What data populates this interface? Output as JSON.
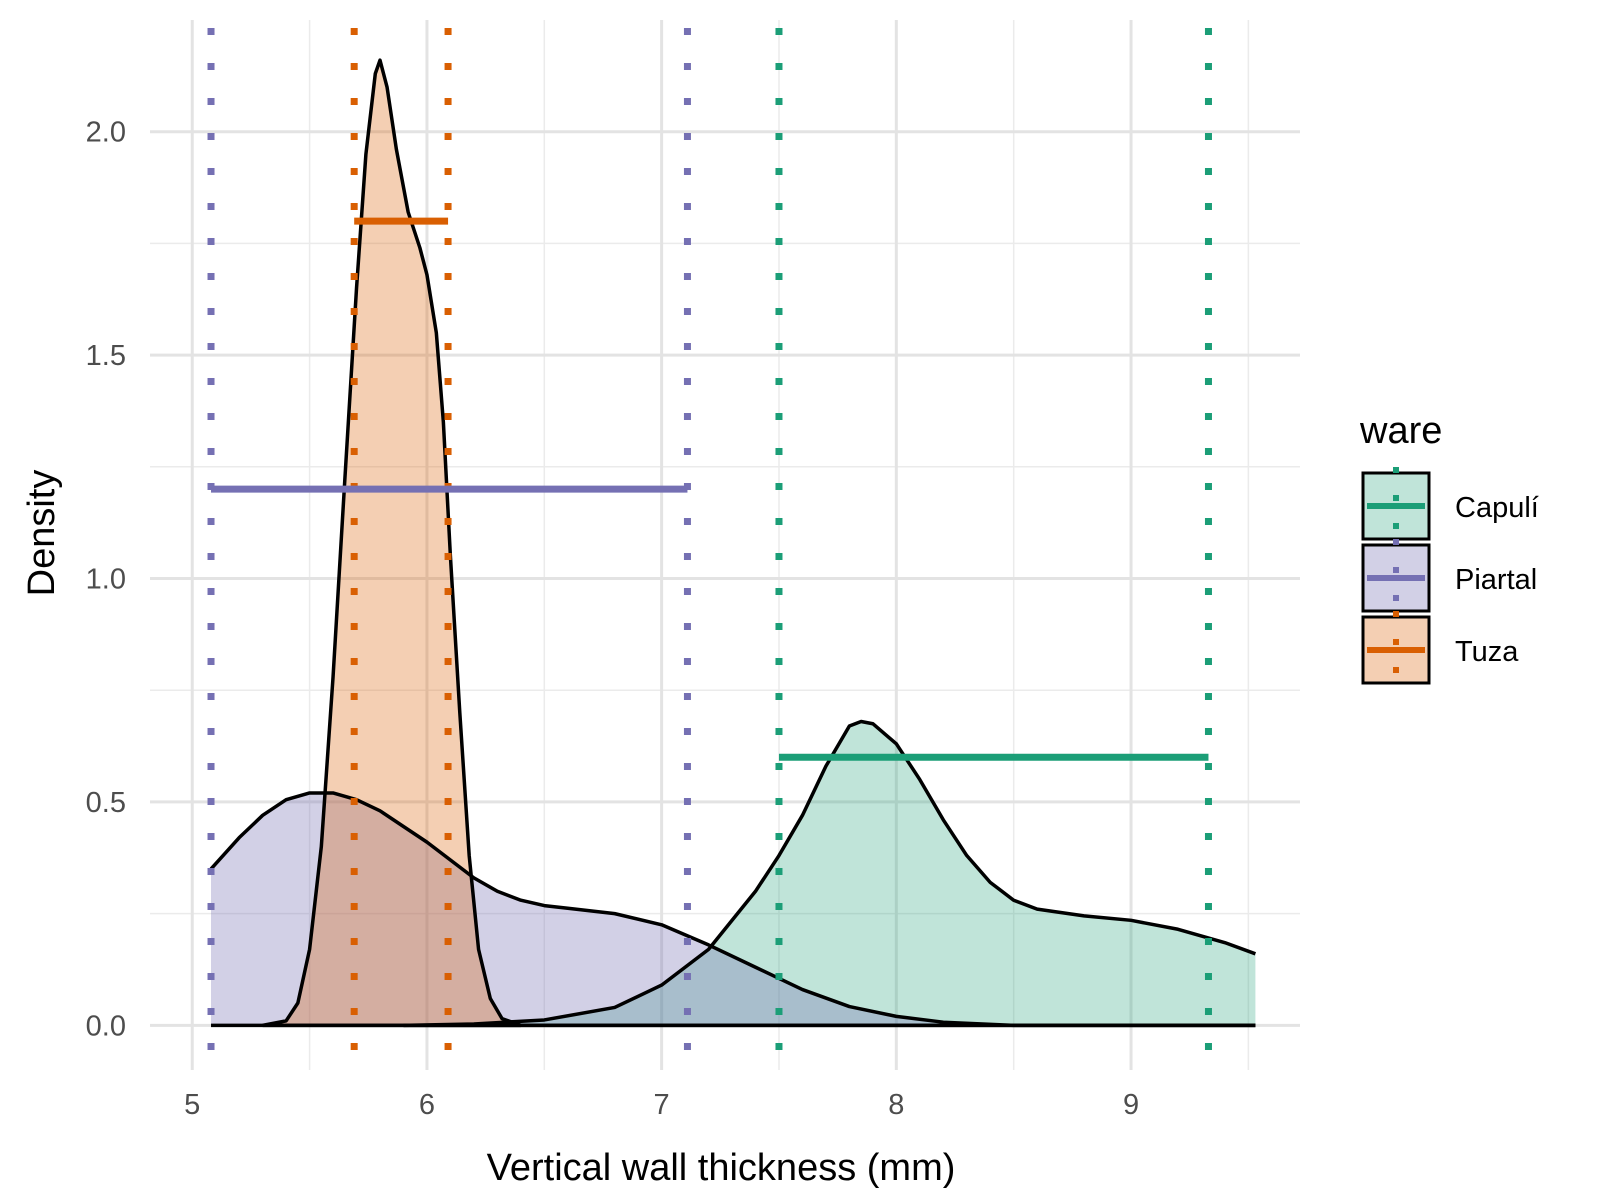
{
  "chart_data": {
    "type": "density",
    "title": "",
    "xlabel": "Vertical wall thickness (mm)",
    "ylabel": "Density",
    "xlim": [
      4.82,
      9.72
    ],
    "ylim": [
      -0.1,
      2.25
    ],
    "x_ticks": [
      5,
      6,
      7,
      8,
      9
    ],
    "y_ticks": [
      0.0,
      0.5,
      1.0,
      1.5,
      2.0
    ],
    "x_tick_labels": [
      "5",
      "6",
      "7",
      "8",
      "9"
    ],
    "y_tick_labels": [
      "0.0",
      "0.5",
      "1.0",
      "1.5",
      "2.0"
    ],
    "grid": true,
    "legend": {
      "title": "ware",
      "position": "right"
    },
    "series": [
      {
        "name": "Capulí",
        "color": "#1b9e77",
        "fill": "rgba(27,158,119,0.28)",
        "density": [
          [
            5.9,
            0.0
          ],
          [
            6.2,
            0.003
          ],
          [
            6.5,
            0.012
          ],
          [
            6.8,
            0.04
          ],
          [
            7.0,
            0.09
          ],
          [
            7.2,
            0.17
          ],
          [
            7.4,
            0.3
          ],
          [
            7.5,
            0.38
          ],
          [
            7.6,
            0.47
          ],
          [
            7.7,
            0.58
          ],
          [
            7.8,
            0.67
          ],
          [
            7.85,
            0.68
          ],
          [
            7.9,
            0.675
          ],
          [
            8.0,
            0.63
          ],
          [
            8.1,
            0.55
          ],
          [
            8.2,
            0.46
          ],
          [
            8.3,
            0.38
          ],
          [
            8.4,
            0.32
          ],
          [
            8.5,
            0.28
          ],
          [
            8.6,
            0.26
          ],
          [
            8.8,
            0.245
          ],
          [
            9.0,
            0.235
          ],
          [
            9.2,
            0.215
          ],
          [
            9.4,
            0.185
          ],
          [
            9.53,
            0.16
          ]
        ],
        "interval": [
          7.5,
          9.33
        ],
        "interval_y": 0.6
      },
      {
        "name": "Piartal",
        "color": "#7570b3",
        "fill": "rgba(117,112,179,0.33)",
        "density": [
          [
            5.08,
            0.35
          ],
          [
            5.2,
            0.42
          ],
          [
            5.3,
            0.47
          ],
          [
            5.4,
            0.505
          ],
          [
            5.5,
            0.52
          ],
          [
            5.6,
            0.52
          ],
          [
            5.7,
            0.505
          ],
          [
            5.8,
            0.48
          ],
          [
            5.9,
            0.445
          ],
          [
            6.0,
            0.41
          ],
          [
            6.1,
            0.37
          ],
          [
            6.2,
            0.33
          ],
          [
            6.3,
            0.3
          ],
          [
            6.4,
            0.28
          ],
          [
            6.5,
            0.268
          ],
          [
            6.6,
            0.262
          ],
          [
            6.8,
            0.25
          ],
          [
            7.0,
            0.225
          ],
          [
            7.2,
            0.18
          ],
          [
            7.4,
            0.13
          ],
          [
            7.6,
            0.08
          ],
          [
            7.8,
            0.042
          ],
          [
            8.0,
            0.02
          ],
          [
            8.2,
            0.007
          ],
          [
            8.5,
            0.0
          ],
          [
            9.53,
            0.0
          ]
        ],
        "interval": [
          5.08,
          7.11
        ],
        "interval_y": 1.2
      },
      {
        "name": "Tuza",
        "color": "#d95f02",
        "fill": "rgba(217,95,2,0.3)",
        "density": [
          [
            5.3,
            0.0
          ],
          [
            5.4,
            0.01
          ],
          [
            5.45,
            0.05
          ],
          [
            5.5,
            0.17
          ],
          [
            5.55,
            0.4
          ],
          [
            5.6,
            0.78
          ],
          [
            5.65,
            1.22
          ],
          [
            5.7,
            1.65
          ],
          [
            5.74,
            1.95
          ],
          [
            5.78,
            2.13
          ],
          [
            5.8,
            2.16
          ],
          [
            5.83,
            2.1
          ],
          [
            5.87,
            1.96
          ],
          [
            5.92,
            1.82
          ],
          [
            5.97,
            1.74
          ],
          [
            6.0,
            1.68
          ],
          [
            6.04,
            1.55
          ],
          [
            6.07,
            1.35
          ],
          [
            6.1,
            1.05
          ],
          [
            6.14,
            0.7
          ],
          [
            6.18,
            0.38
          ],
          [
            6.22,
            0.17
          ],
          [
            6.27,
            0.06
          ],
          [
            6.32,
            0.015
          ],
          [
            6.4,
            0.0
          ]
        ],
        "interval": [
          5.69,
          6.09
        ],
        "interval_y": 1.8
      }
    ]
  }
}
